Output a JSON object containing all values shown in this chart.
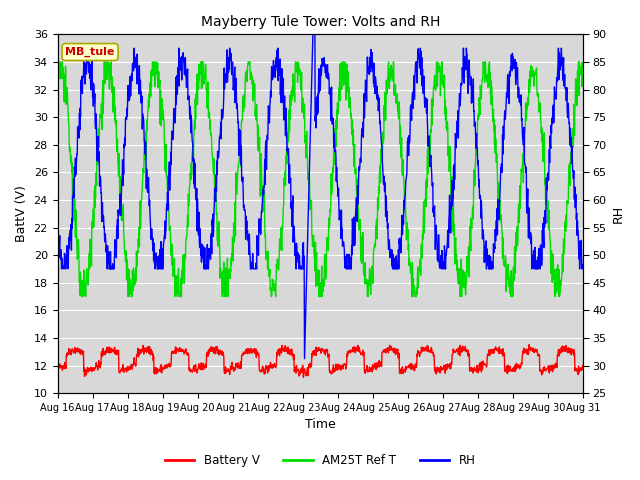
{
  "title": "Mayberry Tule Tower: Volts and RH",
  "xlabel": "Time",
  "ylabel_left": "BattV (V)",
  "ylabel_right": "RH",
  "ylim_left": [
    10,
    36
  ],
  "ylim_right": [
    25,
    90
  ],
  "yticks_left": [
    10,
    12,
    14,
    16,
    18,
    20,
    22,
    24,
    26,
    28,
    30,
    32,
    34,
    36
  ],
  "yticks_right": [
    25,
    30,
    35,
    40,
    45,
    50,
    55,
    60,
    65,
    70,
    75,
    80,
    85,
    90
  ],
  "xtick_labels": [
    "Aug 16",
    "Aug 17",
    "Aug 18",
    "Aug 19",
    "Aug 20",
    "Aug 21",
    "Aug 22",
    "Aug 23",
    "Aug 24",
    "Aug 25",
    "Aug 26",
    "Aug 27",
    "Aug 28",
    "Aug 29",
    "Aug 30",
    "Aug 31"
  ],
  "color_battery": "#ff0000",
  "color_am25t": "#00dd00",
  "color_rh": "#0000ff",
  "bg_color": "#d8d8d8",
  "legend_labels": [
    "Battery V",
    "AM25T Ref T",
    "RH"
  ],
  "station_label": "MB_tule",
  "station_label_bg": "#ffffcc",
  "station_label_border": "#aaaa00",
  "station_label_color": "#cc0000",
  "grid_color": "#ffffff",
  "linewidth": 1.0,
  "n_days": 15,
  "fig_width": 6.4,
  "fig_height": 4.8,
  "dpi": 100
}
